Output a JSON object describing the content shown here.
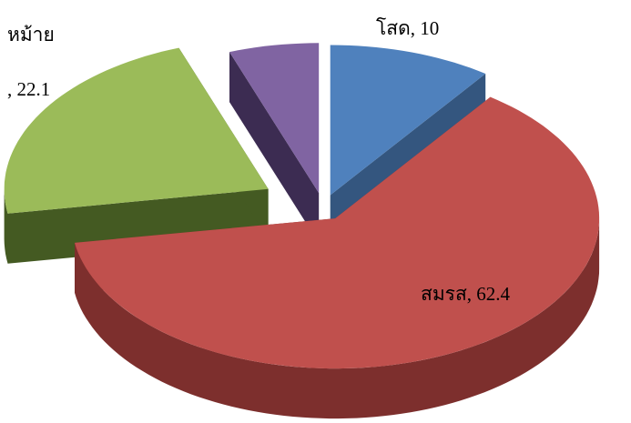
{
  "chart_data": {
    "type": "pie",
    "categories": [
      "โสด",
      "สมรส",
      "หม้าย",
      null
    ],
    "values": [
      10,
      62.4,
      22.1,
      5.5
    ],
    "value_labels": [
      ", 10",
      ", 62.4",
      ", 22.1",
      null
    ],
    "colors": [
      "#4f81bd",
      "#c0504d",
      "#9bbb59",
      "#8064a2"
    ],
    "side_colors": [
      "#34567f",
      "#7d2f2d",
      "#445a22",
      "#3c2c52"
    ],
    "start_angle": 0,
    "direction": "clockwise",
    "exploded": true
  }
}
